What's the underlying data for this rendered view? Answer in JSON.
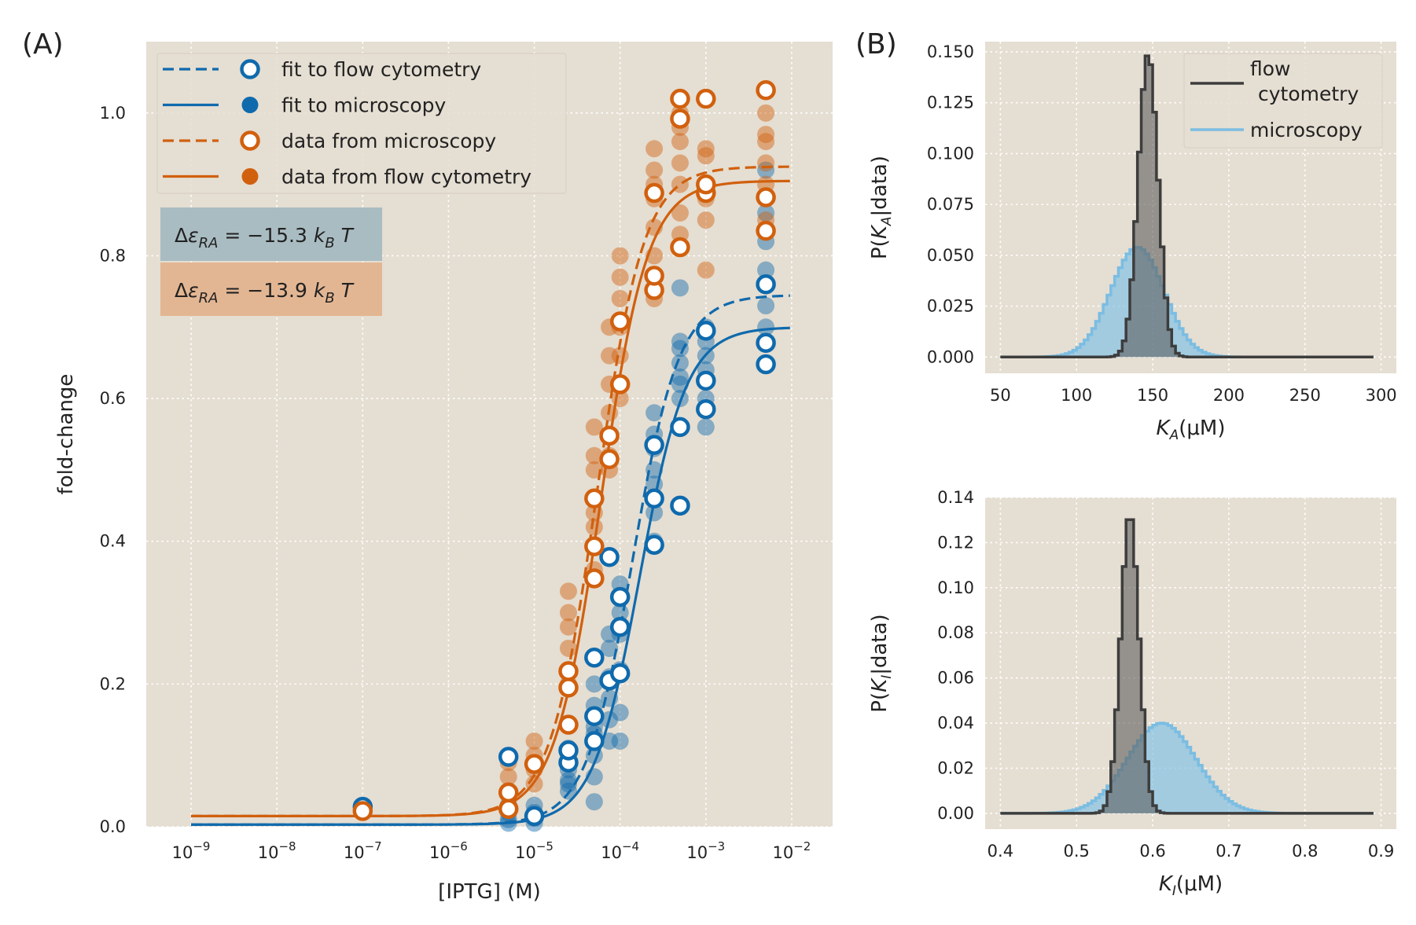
{
  "chart_data": [
    {
      "panel_label": "(A)",
      "type": "scatter",
      "xlabel": "[IPTG] (M)",
      "ylabel": "fold-change",
      "xscale": "log",
      "xlim": [
        3e-10,
        0.03
      ],
      "ylim": [
        0,
        1.1
      ],
      "xticks": [
        "1e-9",
        "1e-8",
        "1e-7",
        "1e-6",
        "1e-5",
        "1e-4",
        "1e-3",
        "1e-2"
      ],
      "xtick_base": "10",
      "xtick_exponents": [
        "−9",
        "−8",
        "−7",
        "−6",
        "−5",
        "−4",
        "−3",
        "−2"
      ],
      "yticks": [
        "0.0",
        "0.2",
        "0.4",
        "0.6",
        "0.8",
        "1.0"
      ],
      "grid": true,
      "legend_position": "top-left",
      "legend": [
        "fit to flow cytometry",
        "fit to microscopy",
        "data from microscopy",
        "data from flow cytometry"
      ],
      "annotations": [
        {
          "text": "Δε_RA = −15.3 k_B T",
          "parts": [
            "Δ",
            "ε",
            "RA",
            " = −15.3 ",
            "k",
            "B",
            "T"
          ],
          "color": "#a9bcc2"
        },
        {
          "text": "Δε_RA = −13.9 k_B T",
          "parts": [
            "Δ",
            "ε",
            "RA",
            " = −13.9 ",
            "k",
            "B",
            "T"
          ],
          "color": "#e3b693"
        }
      ],
      "colors": {
        "blue": "#0f6aad",
        "orange": "#d1600e",
        "background": "#e5ded2"
      },
      "fit_curves": [
        {
          "strain": "blue",
          "method": "flow cytometry",
          "style": "dashed",
          "leakiness": 0.003,
          "saturation": 0.745,
          "ec50": 0.00014,
          "hill": 1.6
        },
        {
          "strain": "blue",
          "method": "microscopy",
          "style": "solid",
          "leakiness": 0.003,
          "saturation": 0.7,
          "ec50": 0.00017,
          "hill": 1.6
        },
        {
          "strain": "orange",
          "method": "flow cytometry",
          "style": "dashed",
          "leakiness": 0.015,
          "saturation": 0.925,
          "ec50": 5.4e-05,
          "hill": 1.6
        },
        {
          "strain": "orange",
          "method": "microscopy",
          "style": "solid",
          "leakiness": 0.015,
          "saturation": 0.905,
          "ec50": 6e-05,
          "hill": 1.6
        }
      ],
      "series": [
        {
          "strain": "blue",
          "method": "microscopy",
          "marker": "open",
          "x": [
            1e-07,
            5e-06,
            1e-05,
            2.5e-05,
            2.5e-05,
            5e-05,
            5e-05,
            5e-05,
            7.5e-05,
            7.5e-05,
            0.0001,
            0.0001,
            0.0001,
            0.00025,
            0.00025,
            0.00025,
            0.0005,
            0.0005,
            0.001,
            0.001,
            0.001,
            0.005,
            0.005,
            0.005
          ],
          "y": [
            0.028,
            0.098,
            0.015,
            0.09,
            0.107,
            0.12,
            0.155,
            0.237,
            0.205,
            0.378,
            0.215,
            0.28,
            0.322,
            0.395,
            0.46,
            0.535,
            0.45,
            0.56,
            0.585,
            0.625,
            0.695,
            0.648,
            0.678,
            0.76
          ]
        },
        {
          "strain": "orange",
          "method": "microscopy",
          "marker": "open",
          "x": [
            1e-07,
            5e-06,
            5e-06,
            1e-05,
            2.5e-05,
            2.5e-05,
            2.5e-05,
            5e-05,
            5e-05,
            5e-05,
            7.5e-05,
            7.5e-05,
            0.0001,
            0.0001,
            0.00025,
            0.00025,
            0.00025,
            0.0005,
            0.0005,
            0.0005,
            0.001,
            0.001,
            0.001,
            0.005,
            0.005,
            0.005
          ],
          "y": [
            0.022,
            0.025,
            0.048,
            0.088,
            0.143,
            0.195,
            0.218,
            0.348,
            0.393,
            0.46,
            0.515,
            0.548,
            0.62,
            0.708,
            0.752,
            0.772,
            0.888,
            0.812,
            0.992,
            1.02,
            0.888,
            0.9,
            1.02,
            0.835,
            0.882,
            1.032
          ]
        },
        {
          "strain": "blue",
          "method": "flow cytometry",
          "marker": "filled",
          "x": [
            5e-06,
            5e-06,
            5e-06,
            5e-06,
            1e-05,
            1e-05,
            1e-05,
            1e-05,
            2.5e-05,
            2.5e-05,
            2.5e-05,
            2.5e-05,
            2.5e-05,
            2.5e-05,
            5e-05,
            5e-05,
            5e-05,
            5e-05,
            5e-05,
            5e-05,
            5e-05,
            7.5e-05,
            7.5e-05,
            7.5e-05,
            7.5e-05,
            7.5e-05,
            7.5e-05,
            0.0001,
            0.0001,
            0.0001,
            0.0001,
            0.0001,
            0.0001,
            0.00025,
            0.00025,
            0.00025,
            0.00025,
            0.00025,
            0.00025,
            0.00025,
            0.0005,
            0.0005,
            0.0005,
            0.0005,
            0.0005,
            0.0005,
            0.0005,
            0.001,
            0.001,
            0.001,
            0.001,
            0.001,
            0.001,
            0.005,
            0.005,
            0.005,
            0.005,
            0.005,
            0.005,
            0.005
          ],
          "y": [
            0.005,
            0.01,
            0.02,
            0.03,
            0.005,
            0.012,
            0.02,
            0.03,
            0.05,
            0.065,
            0.08,
            0.1,
            0.06,
            0.11,
            0.035,
            0.07,
            0.1,
            0.14,
            0.17,
            0.2,
            0.13,
            0.12,
            0.15,
            0.18,
            0.21,
            0.25,
            0.27,
            0.12,
            0.16,
            0.22,
            0.27,
            0.3,
            0.34,
            0.4,
            0.44,
            0.48,
            0.5,
            0.53,
            0.55,
            0.58,
            0.6,
            0.62,
            0.65,
            0.67,
            0.68,
            0.755,
            0.63,
            0.56,
            0.6,
            0.64,
            0.66,
            0.68,
            0.7,
            0.7,
            0.73,
            0.76,
            0.78,
            0.82,
            0.86,
            0.92
          ]
        },
        {
          "strain": "orange",
          "method": "flow cytometry",
          "marker": "filled",
          "x": [
            5e-06,
            5e-06,
            5e-06,
            5e-06,
            1e-05,
            1e-05,
            1e-05,
            1e-05,
            2.5e-05,
            2.5e-05,
            2.5e-05,
            2.5e-05,
            2.5e-05,
            2.5e-05,
            5e-05,
            5e-05,
            5e-05,
            5e-05,
            5e-05,
            5e-05,
            5e-05,
            7.5e-05,
            7.5e-05,
            7.5e-05,
            7.5e-05,
            7.5e-05,
            7.5e-05,
            0.0001,
            0.0001,
            0.0001,
            0.0001,
            0.0001,
            0.0001,
            0.00025,
            0.00025,
            0.00025,
            0.00025,
            0.00025,
            0.00025,
            0.00025,
            0.0005,
            0.0005,
            0.0005,
            0.0005,
            0.0005,
            0.0005,
            0.0005,
            0.001,
            0.001,
            0.001,
            0.001,
            0.001,
            0.001,
            0.005,
            0.005,
            0.005,
            0.005,
            0.005,
            0.005,
            0.005
          ],
          "y": [
            0.03,
            0.05,
            0.07,
            0.09,
            0.06,
            0.08,
            0.1,
            0.12,
            0.22,
            0.25,
            0.28,
            0.3,
            0.33,
            0.2,
            0.36,
            0.42,
            0.46,
            0.5,
            0.52,
            0.56,
            0.44,
            0.52,
            0.58,
            0.62,
            0.66,
            0.7,
            0.5,
            0.6,
            0.66,
            0.7,
            0.74,
            0.77,
            0.8,
            0.8,
            0.84,
            0.88,
            0.9,
            0.92,
            0.95,
            0.74,
            0.86,
            0.9,
            0.93,
            0.96,
            0.98,
            1.0,
            0.83,
            0.78,
            0.85,
            0.88,
            0.9,
            0.94,
            0.95,
            0.85,
            0.88,
            0.9,
            0.93,
            0.96,
            0.97,
            1.0
          ]
        }
      ]
    },
    {
      "panel_label": "(B)",
      "type": "area",
      "xlabel_var": "K",
      "xlabel_sub": "A",
      "xlabel_unit": "(μM)",
      "ylabel_parts": [
        "P(",
        "K",
        "A",
        "|data)"
      ],
      "xlim": [
        40,
        310
      ],
      "ylim": [
        -0.008,
        0.155
      ],
      "xticks": [
        "50",
        "100",
        "150",
        "200",
        "250",
        "300"
      ],
      "yticks": [
        "0.000",
        "0.025",
        "0.050",
        "0.075",
        "0.100",
        "0.125",
        "0.150"
      ],
      "grid": true,
      "legend_position": "top-right",
      "legend": [
        "flow",
        "cytometry",
        "microscopy"
      ],
      "x_range": [
        50,
        295
      ],
      "series": [
        {
          "name": "flow cytometry",
          "color": "#3d3d3d",
          "fill": "#5f5f5f",
          "mean": 147,
          "sd": 6.5,
          "peak": 0.149
        },
        {
          "name": "microscopy",
          "color": "#7bbde2",
          "fill": "#86c3e6",
          "mean": 140,
          "sd": 17.5,
          "peak": 0.054
        }
      ]
    },
    {
      "panel_label": "",
      "type": "area",
      "xlabel_var": "K",
      "xlabel_sub": "I",
      "xlabel_unit": "(μM)",
      "ylabel_parts": [
        "P(",
        "K",
        "I",
        "|data)"
      ],
      "xlim": [
        0.38,
        0.92
      ],
      "ylim": [
        -0.007,
        0.14
      ],
      "xticks": [
        "0.4",
        "0.5",
        "0.6",
        "0.7",
        "0.8",
        "0.9"
      ],
      "yticks": [
        "0.00",
        "0.02",
        "0.04",
        "0.06",
        "0.08",
        "0.10",
        "0.12",
        "0.14"
      ],
      "grid": true,
      "x_range": [
        0.4,
        0.89
      ],
      "series": [
        {
          "name": "flow cytometry",
          "color": "#3d3d3d",
          "fill": "#5f5f5f",
          "mean": 0.57,
          "sd": 0.012,
          "peak": 0.133
        },
        {
          "name": "microscopy",
          "color": "#7bbde2",
          "fill": "#86c3e6",
          "mean": 0.612,
          "sd": 0.045,
          "peak": 0.04
        }
      ]
    }
  ]
}
